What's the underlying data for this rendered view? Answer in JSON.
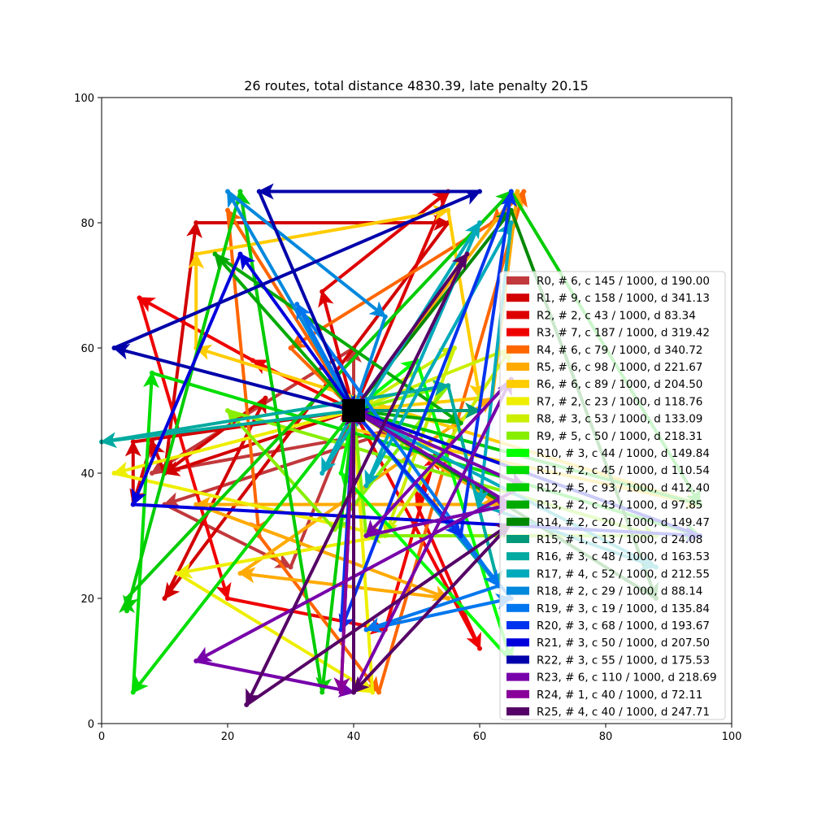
{
  "chart_data": {
    "type": "line",
    "title": "26 routes, total distance 4830.39, late penalty 20.15",
    "xlabel": "",
    "ylabel": "",
    "xlim": [
      0,
      100
    ],
    "ylim": [
      0,
      100
    ],
    "x_ticks": [
      "0",
      "20",
      "40",
      "60",
      "80",
      "100"
    ],
    "y_ticks": [
      "0",
      "20",
      "40",
      "60",
      "80",
      "100"
    ],
    "grid": false,
    "legend_position": "center-right",
    "depot": {
      "x": 40,
      "y": 50,
      "color": "#000000"
    },
    "series": [
      {
        "name": "R0, # 6, c 145 / 1000, d 190.00",
        "color": "#c1393c",
        "points": [
          [
            40,
            50
          ],
          [
            40,
            60
          ],
          [
            8,
            40
          ],
          [
            47,
            47
          ],
          [
            10,
            35
          ],
          [
            30,
            25
          ],
          [
            40,
            50
          ]
        ]
      },
      {
        "name": "R1, # 9, c 158 / 1000, d 341.13",
        "color": "#d20000",
        "points": [
          [
            40,
            50
          ],
          [
            10,
            40
          ],
          [
            15,
            80
          ],
          [
            55,
            80
          ],
          [
            10,
            20
          ],
          [
            26,
            52
          ],
          [
            10,
            40
          ],
          [
            8,
            45
          ],
          [
            5,
            35
          ],
          [
            5,
            45
          ],
          [
            40,
            50
          ]
        ]
      },
      {
        "name": "R2, # 2, c 43 / 1000, d 83.34",
        "color": "#dd0000",
        "points": [
          [
            40,
            50
          ],
          [
            35,
            69
          ],
          [
            55,
            85
          ],
          [
            40,
            50
          ]
        ]
      },
      {
        "name": "R3, # 7, c 187 / 1000, d 319.42",
        "color": "#ef0000",
        "points": [
          [
            40,
            50
          ],
          [
            24,
            58
          ],
          [
            6,
            68
          ],
          [
            20,
            20
          ],
          [
            45,
            15
          ],
          [
            53,
            43
          ],
          [
            50,
            35
          ],
          [
            60,
            12
          ],
          [
            40,
            50
          ]
        ]
      },
      {
        "name": "R4, # 6, c 79 / 1000, d 340.72",
        "color": "#ff6600",
        "points": [
          [
            40,
            50
          ],
          [
            20,
            82
          ],
          [
            25,
            30
          ],
          [
            44,
            5
          ],
          [
            67,
            85
          ],
          [
            62,
            80
          ],
          [
            30,
            60
          ],
          [
            40,
            50
          ]
        ]
      },
      {
        "name": "R5, # 6, c 98 / 1000, d 221.67",
        "color": "#ffaa00",
        "points": [
          [
            40,
            50
          ],
          [
            63,
            35
          ],
          [
            15,
            35
          ],
          [
            55,
            20
          ],
          [
            22,
            24
          ],
          [
            62,
            52
          ],
          [
            66,
            85
          ],
          [
            40,
            50
          ]
        ]
      },
      {
        "name": "R6, # 6, c 89 / 1000, d 204.50",
        "color": "#ffcc00",
        "points": [
          [
            40,
            50
          ],
          [
            40,
            47
          ],
          [
            95,
            35
          ],
          [
            15,
            60
          ],
          [
            15,
            75
          ],
          [
            55,
            82
          ],
          [
            60,
            52
          ],
          [
            40,
            50
          ]
        ]
      },
      {
        "name": "R7, # 2, c 23 / 1000, d 118.76",
        "color": "#eeee00",
        "points": [
          [
            40,
            50
          ],
          [
            2,
            40
          ],
          [
            45,
            30
          ],
          [
            12,
            24
          ],
          [
            43,
            5
          ],
          [
            40,
            50
          ]
        ]
      },
      {
        "name": "R8, # 3, c 53 / 1000, d 133.09",
        "color": "#ccee00",
        "points": [
          [
            40,
            50
          ],
          [
            56,
            60
          ],
          [
            45,
            30
          ],
          [
            65,
            60
          ],
          [
            40,
            50
          ]
        ]
      },
      {
        "name": "R9, # 5, c 50 / 1000, d 218.31",
        "color": "#88ee00",
        "points": [
          [
            40,
            50
          ],
          [
            55,
            54
          ],
          [
            37,
            31
          ],
          [
            20,
            50
          ],
          [
            88,
            30
          ],
          [
            42,
            30
          ],
          [
            40,
            50
          ]
        ]
      },
      {
        "name": "R10, # 3, c 44 / 1000, d 149.84",
        "color": "#00ff00",
        "points": [
          [
            40,
            50
          ],
          [
            50,
            58
          ],
          [
            65,
            10
          ],
          [
            38,
            40
          ],
          [
            40,
            50
          ]
        ]
      },
      {
        "name": "R11, # 2, c 45 / 1000, d 110.54",
        "color": "#00dd00",
        "points": [
          [
            40,
            50
          ],
          [
            5,
            5
          ],
          [
            8,
            56
          ],
          [
            95,
            30
          ],
          [
            40,
            50
          ]
        ]
      },
      {
        "name": "R12, # 5, c 93 / 1000, d 412.40",
        "color": "#00cc00",
        "points": [
          [
            40,
            50
          ],
          [
            35,
            5
          ],
          [
            22,
            85
          ],
          [
            4,
            18
          ],
          [
            4,
            20
          ],
          [
            65,
            85
          ],
          [
            95,
            35
          ],
          [
            40,
            50
          ]
        ]
      },
      {
        "name": "R13, # 2, c 43 / 1000, d 97.85",
        "color": "#00aa00",
        "points": [
          [
            40,
            50
          ],
          [
            18,
            75
          ],
          [
            57,
            48
          ],
          [
            40,
            50
          ]
        ]
      },
      {
        "name": "R14, # 2, c 20 / 1000, d 149.47",
        "color": "#008800",
        "points": [
          [
            40,
            50
          ],
          [
            65,
            82
          ],
          [
            88,
            20
          ],
          [
            40,
            50
          ]
        ]
      },
      {
        "name": "R15, # 1, c 13 / 1000, d 24.08",
        "color": "#00997a",
        "points": [
          [
            40,
            50
          ],
          [
            60,
            50
          ],
          [
            40,
            50
          ]
        ]
      },
      {
        "name": "R16, # 3, c 48 / 1000, d 163.53",
        "color": "#00aaa0",
        "points": [
          [
            40,
            50
          ],
          [
            0,
            45
          ],
          [
            55,
            54
          ],
          [
            63,
            22
          ],
          [
            40,
            50
          ]
        ]
      },
      {
        "name": "R17, # 4, c 52 / 1000, d 212.55",
        "color": "#00aabb",
        "points": [
          [
            40,
            50
          ],
          [
            35,
            40
          ],
          [
            60,
            80
          ],
          [
            42,
            38
          ],
          [
            65,
            80
          ],
          [
            60,
            35
          ],
          [
            88,
            25
          ],
          [
            40,
            50
          ]
        ]
      },
      {
        "name": "R18, # 2, c 29 / 1000, d 88.14",
        "color": "#0088dd",
        "points": [
          [
            40,
            50
          ],
          [
            20,
            85
          ],
          [
            45,
            65
          ],
          [
            40,
            50
          ]
        ]
      },
      {
        "name": "R19, # 3, c 19 / 1000, d 135.84",
        "color": "#0077ee",
        "points": [
          [
            40,
            50
          ],
          [
            31,
            67
          ],
          [
            63,
            22
          ],
          [
            42,
            15
          ],
          [
            65,
            20
          ],
          [
            40,
            50
          ]
        ]
      },
      {
        "name": "R20, # 3, c 68 / 1000, d 193.67",
        "color": "#0033ee",
        "points": [
          [
            40,
            50
          ],
          [
            57,
            30
          ],
          [
            65,
            85
          ],
          [
            38,
            15
          ],
          [
            40,
            50
          ]
        ]
      },
      {
        "name": "R21, # 3, c 50 / 1000, d 207.50",
        "color": "#0000dd",
        "points": [
          [
            40,
            50
          ],
          [
            22,
            75
          ],
          [
            5,
            35
          ],
          [
            95,
            30
          ],
          [
            40,
            50
          ]
        ]
      },
      {
        "name": "R22, # 3, c 55 / 1000, d 175.53",
        "color": "#0000aa",
        "points": [
          [
            40,
            50
          ],
          [
            2,
            60
          ],
          [
            60,
            85
          ],
          [
            25,
            85
          ],
          [
            40,
            50
          ]
        ]
      },
      {
        "name": "R23, # 6, c 110 / 1000, d 218.69",
        "color": "#7700aa",
        "points": [
          [
            40,
            50
          ],
          [
            67,
            38
          ],
          [
            15,
            10
          ],
          [
            40,
            5
          ],
          [
            65,
            55
          ],
          [
            42,
            30
          ],
          [
            65,
            35
          ],
          [
            40,
            50
          ]
        ]
      },
      {
        "name": "R24, # 1, c 40 / 1000, d 72.11",
        "color": "#880099",
        "points": [
          [
            40,
            50
          ],
          [
            38,
            5
          ],
          [
            40,
            50
          ]
        ]
      },
      {
        "name": "R25, # 4, c 40 / 1000, d 247.71",
        "color": "#550066",
        "points": [
          [
            40,
            50
          ],
          [
            58,
            75
          ],
          [
            23,
            3
          ],
          [
            65,
            32
          ],
          [
            40,
            5
          ],
          [
            40,
            50
          ]
        ]
      }
    ]
  }
}
